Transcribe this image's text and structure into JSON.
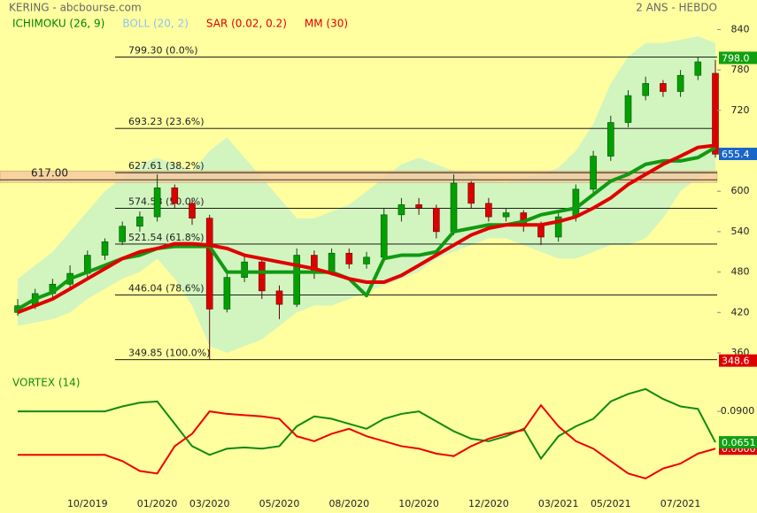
{
  "chart_data": [
    {
      "type": "candlestick",
      "title": "KERING - abcbourse.com",
      "subtitle": "2 ANS - HEBDO",
      "categories": [
        null,
        null,
        null,
        null,
        "10/2019",
        null,
        null,
        null,
        "01/2020",
        null,
        null,
        "03/2020",
        null,
        null,
        null,
        "05/2020",
        null,
        null,
        null,
        "08/2020",
        null,
        null,
        null,
        "10/2020",
        null,
        null,
        null,
        "12/2020",
        null,
        null,
        null,
        "03/2021",
        null,
        null,
        "05/2021",
        null,
        null,
        null,
        "07/2021",
        null,
        null
      ],
      "open": [
        420,
        430,
        448,
        462,
        478,
        505,
        525,
        548,
        562,
        605,
        582,
        560,
        425,
        472,
        495,
        452,
        432,
        505,
        480,
        508,
        492,
        502,
        565,
        580,
        575,
        540,
        612,
        582,
        562,
        568,
        548,
        532,
        562,
        603,
        652,
        702,
        742,
        760,
        748,
        772,
        775
      ],
      "high": [
        440,
        455,
        470,
        490,
        512,
        530,
        555,
        570,
        625,
        610,
        590,
        565,
        480,
        505,
        500,
        460,
        515,
        512,
        515,
        515,
        510,
        575,
        590,
        590,
        580,
        625,
        615,
        590,
        575,
        572,
        555,
        570,
        610,
        660,
        712,
        750,
        770,
        765,
        780,
        800,
        795
      ],
      "low": [
        415,
        425,
        440,
        455,
        470,
        498,
        520,
        540,
        555,
        575,
        550,
        350,
        420,
        465,
        440,
        410,
        428,
        470,
        475,
        485,
        485,
        495,
        555,
        565,
        530,
        535,
        575,
        555,
        555,
        540,
        520,
        525,
        555,
        598,
        645,
        695,
        735,
        740,
        740,
        765,
        650
      ],
      "close": [
        430,
        448,
        462,
        478,
        505,
        525,
        548,
        562,
        605,
        582,
        560,
        425,
        472,
        495,
        452,
        432,
        505,
        480,
        508,
        492,
        502,
        565,
        580,
        575,
        540,
        612,
        582,
        562,
        568,
        548,
        532,
        562,
        603,
        652,
        702,
        742,
        760,
        748,
        772,
        792,
        655
      ],
      "up_color": "#00a000",
      "down_color": "#dd0000",
      "legend": [
        {
          "name": "ICHIMOKU (26, 9)",
          "color": "#008000"
        },
        {
          "name": "BOLL (20, 2)",
          "color": "#8ec3ea"
        },
        {
          "name": "SAR (0.02, 0.2)",
          "color": "#dd0000"
        },
        {
          "name": "MM (30)",
          "color": "#dd0000"
        }
      ],
      "ichimoku": {
        "color": "#109a10",
        "values": [
          425,
          440,
          450,
          470,
          480,
          490,
          500,
          505,
          515,
          518,
          518,
          518,
          480,
          480,
          480,
          480,
          480,
          480,
          480,
          470,
          445,
          500,
          505,
          505,
          510,
          540,
          545,
          550,
          550,
          555,
          565,
          570,
          575,
          595,
          615,
          625,
          640,
          645,
          645,
          650,
          665
        ]
      },
      "mm": {
        "color": "#e00000",
        "values": [
          420,
          430,
          440,
          455,
          470,
          485,
          500,
          510,
          515,
          522,
          522,
          520,
          515,
          505,
          500,
          495,
          490,
          485,
          478,
          470,
          465,
          465,
          475,
          490,
          505,
          520,
          535,
          545,
          550,
          550,
          550,
          555,
          562,
          575,
          590,
          610,
          625,
          640,
          652,
          665,
          668
        ]
      },
      "bollinger": {
        "color": "#d2f5bf",
        "upper": [
          470,
          490,
          510,
          540,
          570,
          600,
          620,
          640,
          650,
          640,
          630,
          660,
          680,
          650,
          620,
          590,
          560,
          560,
          570,
          580,
          600,
          620,
          640,
          650,
          640,
          630,
          625,
          615,
          612,
          620,
          625,
          635,
          660,
          700,
          760,
          800,
          820,
          820,
          825,
          830,
          820
        ],
        "lower": [
          400,
          405,
          410,
          420,
          440,
          455,
          470,
          480,
          500,
          470,
          430,
          370,
          360,
          370,
          380,
          400,
          420,
          430,
          430,
          440,
          450,
          460,
          470,
          480,
          500,
          510,
          520,
          530,
          530,
          520,
          510,
          500,
          500,
          510,
          520,
          520,
          530,
          560,
          600,
          620,
          630
        ]
      },
      "fibonacci": [
        {
          "value": 799.3,
          "label": "799.30  (0.0%)"
        },
        {
          "value": 693.23,
          "label": "693.23  (23.6%)"
        },
        {
          "value": 627.61,
          "label": "627.61  (38.2%)"
        },
        {
          "value": 574.58,
          "label": "574.58  (50.0%)"
        },
        {
          "value": 521.54,
          "label": "521.54  (61.8%)"
        },
        {
          "value": 446.04,
          "label": "446.04  (78.6%)"
        },
        {
          "value": 349.85,
          "label": "349.85  (100.0%)"
        }
      ],
      "support": {
        "value": 617,
        "label": "617.00"
      },
      "zone": [
        613,
        630
      ],
      "zone_color": "#f5c9a0",
      "ylim": [
        335,
        855
      ],
      "yticks": [
        840,
        780,
        720,
        600,
        540,
        480,
        420,
        360
      ],
      "price_labels": [
        {
          "value": 798,
          "label": "798.0",
          "color": "#10a010"
        },
        {
          "value": 655.4,
          "label": "655.4",
          "color": "#1a66c8"
        },
        {
          "value": 348.6,
          "label": "348.6",
          "color": "#dd0000"
        }
      ]
    },
    {
      "type": "line",
      "title": "VORTEX (14)",
      "series": [
        {
          "color": "#108a10",
          "values": [
            0.09,
            0.09,
            0.09,
            0.09,
            0.09,
            0.09,
            0.094,
            0.097,
            0.098,
            0.08,
            0.062,
            0.055,
            0.06,
            0.061,
            0.06,
            0.062,
            0.078,
            0.086,
            0.084,
            0.08,
            0.076,
            0.084,
            0.088,
            0.09,
            0.082,
            0.074,
            0.068,
            0.066,
            0.07,
            0.076,
            0.052,
            0.07,
            0.078,
            0.084,
            0.098,
            0.104,
            0.108,
            0.1,
            0.094,
            0.092,
            0.0651
          ]
        },
        {
          "color": "#ee0000",
          "values": [
            0.055,
            0.055,
            0.055,
            0.055,
            0.055,
            0.055,
            0.05,
            0.042,
            0.04,
            0.062,
            0.072,
            0.09,
            0.088,
            0.087,
            0.086,
            0.084,
            0.07,
            0.066,
            0.072,
            0.076,
            0.07,
            0.066,
            0.062,
            0.06,
            0.056,
            0.054,
            0.062,
            0.068,
            0.072,
            0.075,
            0.095,
            0.078,
            0.066,
            0.06,
            0.05,
            0.04,
            0.036,
            0.044,
            0.048,
            0.056,
            0.06
          ]
        }
      ],
      "ylim": [
        0.026,
        0.115
      ],
      "yticks": [
        {
          "value": 0.09,
          "label": "0.0900"
        }
      ],
      "value_labels": [
        {
          "value": 0.06,
          "label": "0.0600",
          "color": "#dd0000"
        },
        {
          "value": 0.0651,
          "label": "0.0651",
          "color": "#10a010"
        }
      ]
    }
  ]
}
